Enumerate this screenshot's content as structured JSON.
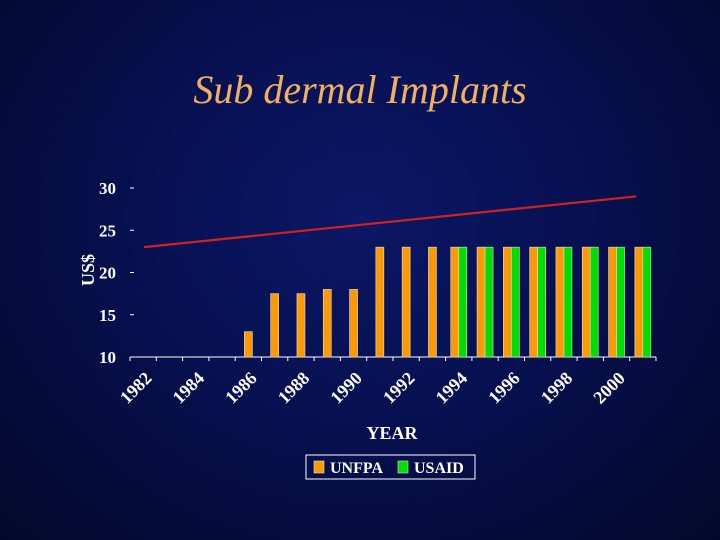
{
  "slide": {
    "title": "Sub dermal Implants"
  },
  "chart_data": {
    "type": "bar",
    "title": "",
    "xlabel": "YEAR",
    "ylabel": "US$",
    "ylim": [
      10,
      30
    ],
    "yticks": [
      10,
      15,
      20,
      25,
      30
    ],
    "categories": [
      "1982",
      "1983",
      "1984",
      "1985",
      "1986",
      "1987",
      "1988",
      "1989",
      "1990",
      "1991",
      "1992",
      "1993",
      "1994",
      "1995",
      "1996",
      "1997",
      "1998",
      "1999",
      "2000",
      "2001"
    ],
    "xtick_labels": [
      "1982",
      "1984",
      "1986",
      "1988",
      "1990",
      "1992",
      "1994",
      "1996",
      "1998",
      "2000"
    ],
    "series": [
      {
        "name": "UNFPA",
        "color": "#ff9900",
        "values": [
          null,
          null,
          null,
          null,
          13,
          17.5,
          17.5,
          18,
          18,
          23,
          23,
          23,
          23,
          23,
          23,
          23,
          23,
          23,
          23,
          23
        ]
      },
      {
        "name": "USAID",
        "color": "#00dd00",
        "values": [
          null,
          null,
          null,
          null,
          null,
          null,
          null,
          null,
          null,
          null,
          null,
          null,
          23,
          23,
          23,
          23,
          23,
          23,
          23,
          23
        ]
      }
    ],
    "trend_line": {
      "color": "#cc2222",
      "start": 23,
      "end": 29
    },
    "legend": "bottom",
    "grid": false
  }
}
